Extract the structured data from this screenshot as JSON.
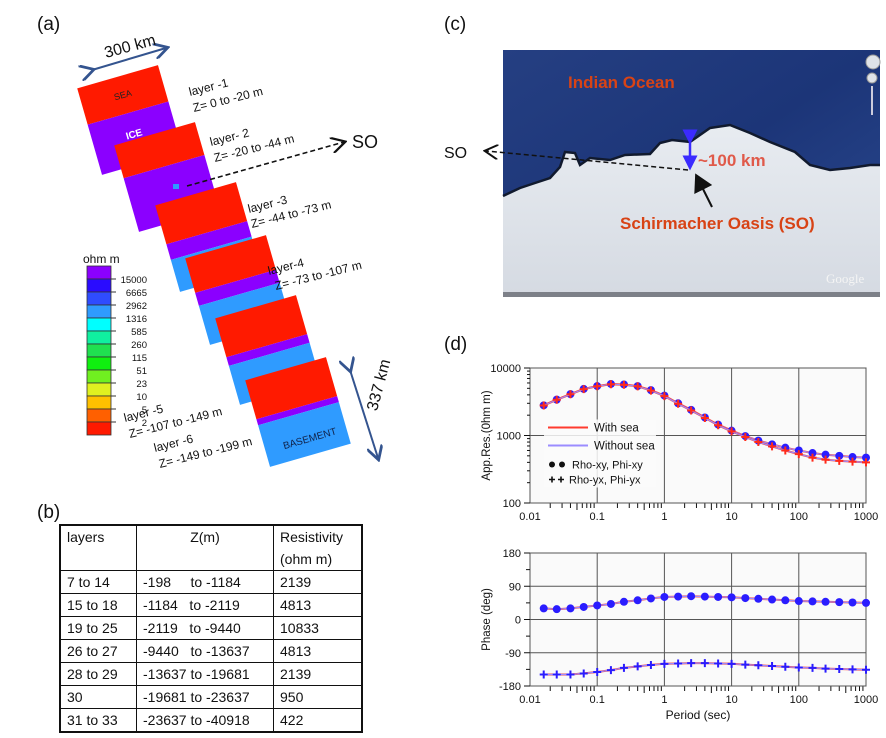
{
  "panels": {
    "a": {
      "label": "(a)",
      "width_annotation": "300 km",
      "depth_annotation": "337 km",
      "so_label": "SO",
      "block_labels": {
        "sea": "SEA",
        "ice": "ICE",
        "basement": "BASEMENT"
      },
      "layers": [
        {
          "name": "layer -1",
          "z": "Z= 0 to -20 m"
        },
        {
          "name": "layer- 2",
          "z": "Z=  -20 to -44 m"
        },
        {
          "name": "layer -3",
          "z": "Z= -44 to -73 m"
        },
        {
          "name": "layer-4",
          "z": "Z= -73 to -107 m"
        },
        {
          "name": "layer -5",
          "z": "Z=  -107 to -149 m"
        },
        {
          "name": "layer -6",
          "z": "Z= -149 to -199 m"
        }
      ],
      "colorbar": {
        "unit": "ohm m",
        "ticks": [
          "15000",
          "6665",
          "2962",
          "1316",
          "585",
          "260",
          "115",
          "51",
          "23",
          "10",
          "5",
          "2"
        ],
        "colors": [
          "#8b00ff",
          "#2a0cff",
          "#2f4cff",
          "#2f9bff",
          "#00ffff",
          "#10f0a0",
          "#20e050",
          "#10f010",
          "#70f020",
          "#e0f020",
          "#ffc000",
          "#ff6000",
          "#ff1a00"
        ]
      },
      "colors": {
        "conductive": "#ff1a00",
        "ice": "#8b00ff",
        "resistive": "#2f9bff"
      }
    },
    "b": {
      "label": "(b)",
      "headers": [
        "layers",
        "Z(m)",
        "Resistivity\n(ohm m)"
      ],
      "header_lines": {
        "res1": "Resistivity",
        "res2": "(ohm m)"
      },
      "rows": [
        [
          "7 to 14",
          "-198     to -1184",
          "2139"
        ],
        [
          "15 to 18",
          "-1184   to -2119",
          "4813"
        ],
        [
          "19 to 25",
          "-2119   to -9440",
          "10833"
        ],
        [
          "26 to 27",
          "-9440   to -13637",
          "4813"
        ],
        [
          "28 to 29",
          "-13637 to -19681",
          "2139"
        ],
        [
          "30",
          "-19681 to -23637",
          "950"
        ],
        [
          "31 to 33",
          "-23637 to -40918",
          "422"
        ]
      ]
    },
    "c": {
      "label": "(c)",
      "ocean_label": "Indian Ocean",
      "distance_label": "~100 km",
      "oasis_label": "Schirmacher Oasis (SO)",
      "so_label": "SO",
      "watermark": "Google",
      "colors": {
        "ocean": "#1e3a7a",
        "ice": "#dfe3ea",
        "label": "#d84315",
        "distance": "#e05a4a",
        "arrow": "#3b2bff"
      }
    },
    "d": {
      "label": "(d)"
    }
  },
  "chart_data": [
    {
      "type": "line",
      "title": "",
      "xlabel": "",
      "ylabel": "App.Res.(0hm m)",
      "xscale": "log",
      "yscale": "log",
      "xlim": [
        0.01,
        1000
      ],
      "ylim": [
        100,
        10000
      ],
      "xticks": [
        "0.01",
        "0.1",
        "1",
        "10",
        "100",
        "1000"
      ],
      "yticks": [
        "100",
        "1000",
        "10000"
      ],
      "grid": true,
      "legend": {
        "placement": "lower-left",
        "entries": [
          {
            "label": "With sea",
            "color": "#ff3b2f",
            "style": "line"
          },
          {
            "label": "Without sea",
            "color": "#9b8cff",
            "style": "line"
          },
          {
            "label": "Rho-xy, Phi-xy",
            "marker": "circle"
          },
          {
            "label": "Rho-yx, Phi-yx",
            "marker": "plus"
          }
        ]
      },
      "x": [
        0.016,
        0.025,
        0.04,
        0.063,
        0.1,
        0.16,
        0.25,
        0.4,
        0.63,
        1,
        1.6,
        2.5,
        4,
        6.3,
        10,
        16,
        25,
        40,
        63,
        100,
        160,
        250,
        400,
        630,
        1000
      ],
      "series": [
        {
          "name": "Without sea Rho-xy",
          "color": "#2a1cff",
          "marker": "circle",
          "values": [
            2800,
            3400,
            4100,
            4900,
            5400,
            5800,
            5700,
            5400,
            4700,
            3900,
            3000,
            2400,
            1850,
            1450,
            1180,
            980,
            840,
            740,
            660,
            600,
            550,
            520,
            500,
            480,
            470
          ]
        },
        {
          "name": "With sea Rho-yx",
          "color": "#ff2a1a",
          "marker": "plus",
          "values": [
            2780,
            3380,
            4080,
            4870,
            5370,
            5750,
            5650,
            5350,
            4620,
            3830,
            2950,
            2350,
            1820,
            1420,
            1150,
            950,
            800,
            690,
            600,
            530,
            470,
            440,
            420,
            410,
            400
          ]
        }
      ]
    },
    {
      "type": "line",
      "title": "",
      "xlabel": "Period (sec)",
      "ylabel": "Phase (deg)",
      "xscale": "log",
      "xlim": [
        0.01,
        1000
      ],
      "ylim": [
        -180,
        180
      ],
      "xticks": [
        "0.01",
        "0.1",
        "1",
        "10",
        "100",
        "1000"
      ],
      "yticks": [
        "180",
        "90",
        "0",
        "-90",
        "-180"
      ],
      "grid": true,
      "x": [
        0.016,
        0.025,
        0.04,
        0.063,
        0.1,
        0.16,
        0.25,
        0.4,
        0.63,
        1,
        1.6,
        2.5,
        4,
        6.3,
        10,
        16,
        25,
        40,
        63,
        100,
        160,
        250,
        400,
        630,
        1000
      ],
      "series": [
        {
          "name": "Phi-xy",
          "color": "#2a1cff",
          "marker": "circle",
          "values": [
            30,
            28,
            30,
            34,
            38,
            42,
            48,
            52,
            57,
            61,
            62,
            63,
            62,
            61,
            60,
            58,
            56,
            54,
            52,
            50,
            49,
            48,
            47,
            46,
            45
          ]
        },
        {
          "name": "Phi-yx",
          "color": "#2a1cff",
          "marker": "plus",
          "values": [
            -149,
            -149,
            -149,
            -146,
            -142,
            -137,
            -131,
            -127,
            -123,
            -120,
            -119,
            -118,
            -118,
            -119,
            -120,
            -122,
            -124,
            -126,
            -128,
            -130,
            -131,
            -133,
            -134,
            -135,
            -136
          ]
        }
      ]
    }
  ]
}
